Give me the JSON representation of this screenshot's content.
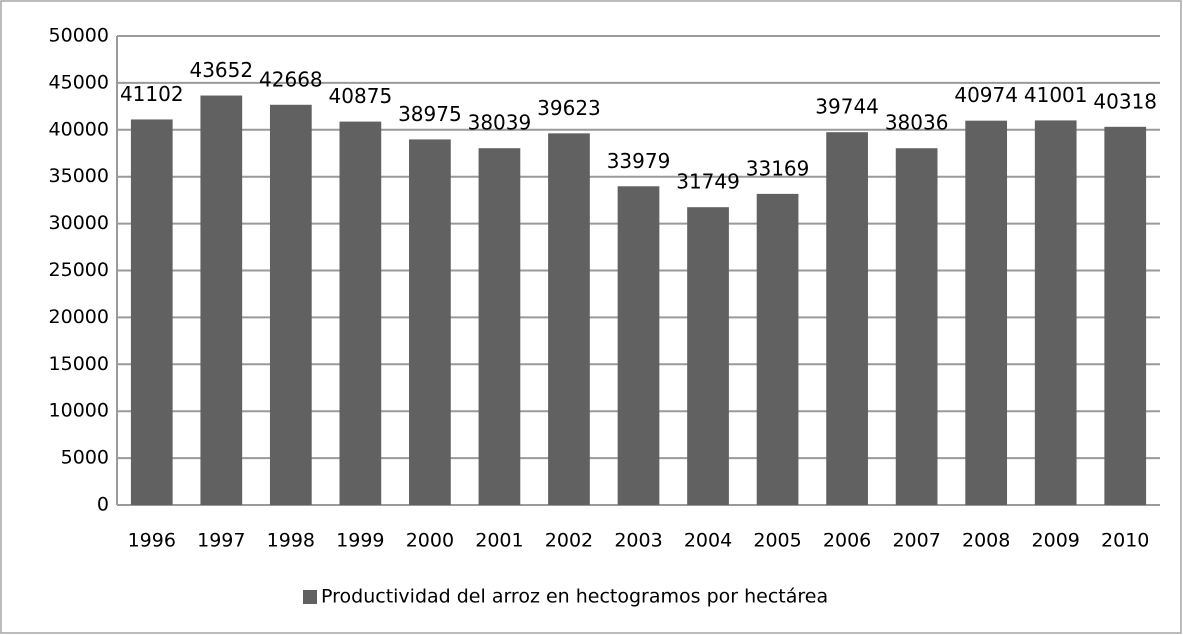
{
  "chart_data": {
    "type": "bar",
    "categories": [
      "1996",
      "1997",
      "1998",
      "1999",
      "2000",
      "2001",
      "2002",
      "2003",
      "2004",
      "2005",
      "2006",
      "2007",
      "2008",
      "2009",
      "2010"
    ],
    "series": [
      {
        "name": "Productividad del arroz en hectogramos por hectárea",
        "color": "#616161",
        "values": [
          41102,
          43652,
          42668,
          40875,
          38975,
          38039,
          39623,
          33979,
          31749,
          33169,
          39744,
          38036,
          40974,
          41001,
          40318
        ]
      }
    ],
    "ylim": [
      0,
      50000
    ],
    "yticks": [
      0,
      5000,
      10000,
      15000,
      20000,
      25000,
      30000,
      35000,
      40000,
      45000,
      50000
    ],
    "grid": true,
    "legend": "bottom"
  }
}
